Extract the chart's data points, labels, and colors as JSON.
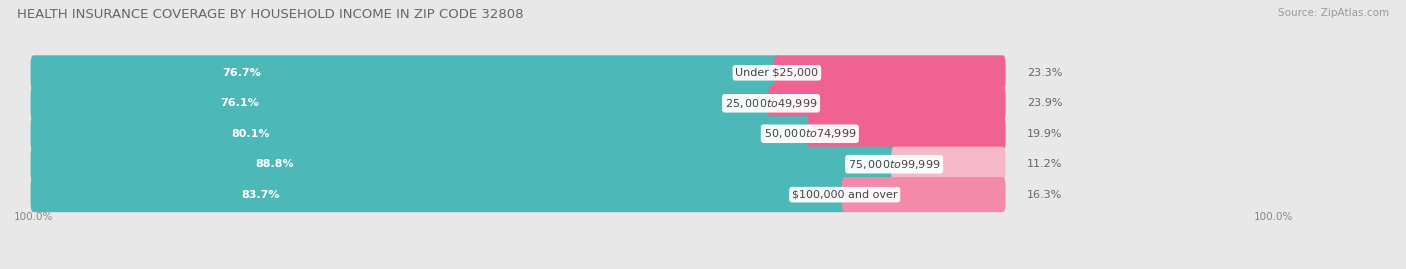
{
  "title": "HEALTH INSURANCE COVERAGE BY HOUSEHOLD INCOME IN ZIP CODE 32808",
  "source": "Source: ZipAtlas.com",
  "categories": [
    "Under $25,000",
    "$25,000 to $49,999",
    "$50,000 to $74,999",
    "$75,000 to $99,999",
    "$100,000 and over"
  ],
  "with_coverage": [
    76.7,
    76.1,
    80.1,
    88.8,
    83.7
  ],
  "without_coverage": [
    23.3,
    23.9,
    19.9,
    11.2,
    16.3
  ],
  "color_with": "#4db8b8",
  "color_without": [
    "#f06292",
    "#f06292",
    "#f06292",
    "#f4b8c8",
    "#f48aaa"
  ],
  "bg_color": "#e8e8e8",
  "bar_bg": "#f5f5f5",
  "title_color": "#888888",
  "title_fontsize": 9.5,
  "label_fontsize": 8.0,
  "pct_fontsize": 8.0,
  "source_fontsize": 7.5,
  "legend_fontsize": 8.0,
  "bottom_label": "100.0%"
}
